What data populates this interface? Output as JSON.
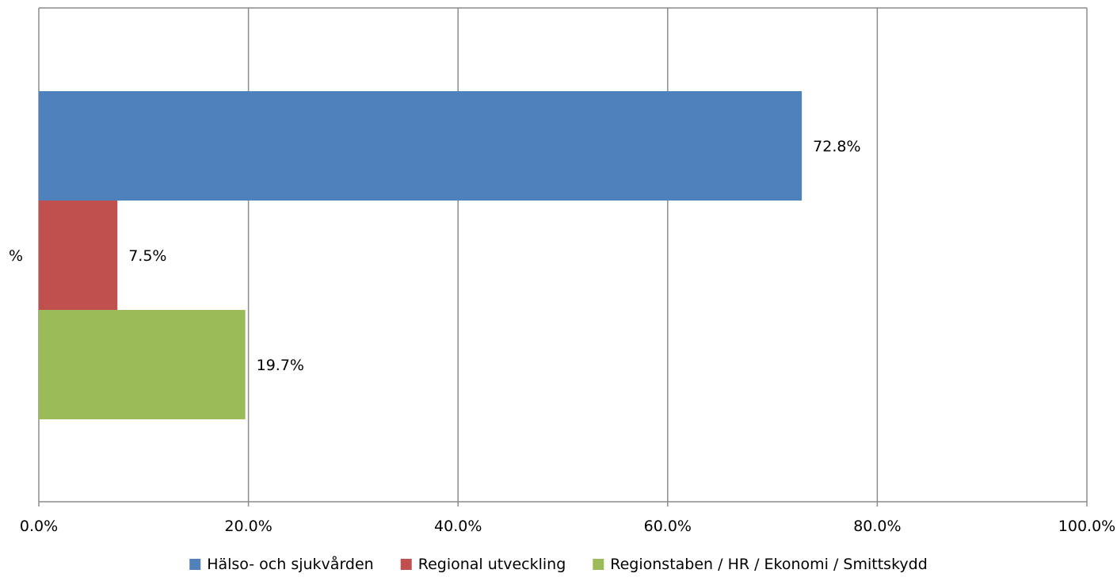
{
  "chart_data": {
    "type": "bar",
    "orientation": "horizontal",
    "categories": [
      "%"
    ],
    "series": [
      {
        "name": "Hälso- och sjukvården",
        "values": [
          72.8
        ],
        "color": "#4F81BD",
        "label": "72.8%"
      },
      {
        "name": "Regional utveckling",
        "values": [
          7.5
        ],
        "color": "#C0504D",
        "label": "7.5%"
      },
      {
        "name": "Regionstaben / HR / Ekonomi / Smittskydd",
        "values": [
          19.7
        ],
        "color": "#9BBB59",
        "label": "19.7%"
      }
    ],
    "xlim": [
      0,
      100
    ],
    "x_ticks": [
      "0.0%",
      "20.0%",
      "40.0%",
      "60.0%",
      "80.0%",
      "100.0%"
    ],
    "grid": true,
    "legend_position": "bottom",
    "title": "",
    "xlabel": "",
    "ylabel": ""
  }
}
